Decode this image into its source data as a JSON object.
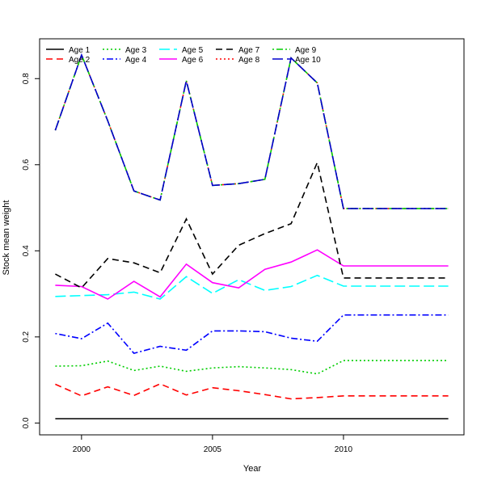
{
  "chart_data": {
    "type": "line",
    "title": "",
    "xlabel": "Year",
    "ylabel": "Stock mean weight",
    "xlim": [
      1998.4,
      2014.6
    ],
    "ylim": [
      -0.0275,
      0.8925
    ],
    "x_ticks": [
      2000,
      2005,
      2010
    ],
    "y_ticks": [
      0.0,
      0.2,
      0.4,
      0.6,
      0.8
    ],
    "x_tick_labels": [
      "2000",
      "2005",
      "2010"
    ],
    "y_tick_labels": [
      "0.0",
      "0.2",
      "0.4",
      "0.6",
      "0.8"
    ],
    "grid": false,
    "legend_position": "top-left",
    "x": [
      1999,
      2000,
      2001,
      2002,
      2003,
      2004,
      2005,
      2006,
      2007,
      2008,
      2009,
      2010,
      2011,
      2012,
      2013,
      2014
    ],
    "series": [
      {
        "name": "Age 1",
        "color": "#000000",
        "dash": "solid",
        "values": [
          0.01,
          0.01,
          0.01,
          0.01,
          0.01,
          0.01,
          0.01,
          0.01,
          0.01,
          0.01,
          0.01,
          0.01,
          0.01,
          0.01,
          0.01,
          0.01
        ]
      },
      {
        "name": "Age 2",
        "color": "#ff0000",
        "dash": "dashed",
        "values": [
          0.09,
          0.063,
          0.084,
          0.064,
          0.091,
          0.065,
          0.082,
          0.075,
          0.066,
          0.056,
          0.059,
          0.063,
          0.063,
          0.063,
          0.063,
          0.063
        ]
      },
      {
        "name": "Age 3",
        "color": "#00cd00",
        "dash": "dotted",
        "values": [
          0.132,
          0.133,
          0.144,
          0.122,
          0.132,
          0.12,
          0.128,
          0.131,
          0.128,
          0.124,
          0.114,
          0.145,
          0.145,
          0.145,
          0.145,
          0.145
        ]
      },
      {
        "name": "Age 4",
        "color": "#0000ff",
        "dash": "dotdash",
        "values": [
          0.208,
          0.196,
          0.232,
          0.162,
          0.178,
          0.169,
          0.214,
          0.214,
          0.212,
          0.197,
          0.19,
          0.251,
          0.251,
          0.251,
          0.251,
          0.251
        ]
      },
      {
        "name": "Age 5",
        "color": "#00ffff",
        "dash": "longdash",
        "values": [
          0.294,
          0.296,
          0.298,
          0.304,
          0.288,
          0.34,
          0.301,
          0.333,
          0.308,
          0.317,
          0.343,
          0.318,
          0.318,
          0.318,
          0.318,
          0.318
        ]
      },
      {
        "name": "Age 6",
        "color": "#ff00ff",
        "dash": "solid",
        "values": [
          0.32,
          0.317,
          0.288,
          0.329,
          0.293,
          0.369,
          0.326,
          0.314,
          0.357,
          0.374,
          0.402,
          0.365,
          0.365,
          0.365,
          0.365,
          0.365
        ]
      },
      {
        "name": "Age 7",
        "color": "#000000",
        "dash": "dashed",
        "values": [
          0.346,
          0.314,
          0.382,
          0.372,
          0.349,
          0.474,
          0.346,
          0.413,
          0.44,
          0.463,
          0.605,
          0.337,
          0.337,
          0.337,
          0.337,
          0.337
        ]
      },
      {
        "name": "Age 8",
        "color": "#ff0000",
        "dash": "dotted",
        "values": [
          0.68,
          0.855,
          0.702,
          0.539,
          0.518,
          0.795,
          0.552,
          0.556,
          0.566,
          0.848,
          0.79,
          0.498,
          0.498,
          0.498,
          0.498,
          0.498
        ]
      },
      {
        "name": "Age 9",
        "color": "#00cd00",
        "dash": "dotdash",
        "values": [
          0.68,
          0.855,
          0.702,
          0.539,
          0.518,
          0.795,
          0.552,
          0.556,
          0.566,
          0.848,
          0.79,
          0.498,
          0.498,
          0.498,
          0.498,
          0.498
        ]
      },
      {
        "name": "Age 10",
        "color": "#0000cd",
        "dash": "longdash",
        "values": [
          0.68,
          0.855,
          0.702,
          0.539,
          0.518,
          0.795,
          0.552,
          0.556,
          0.566,
          0.848,
          0.79,
          0.498,
          0.498,
          0.498,
          0.498,
          0.498
        ]
      }
    ]
  }
}
